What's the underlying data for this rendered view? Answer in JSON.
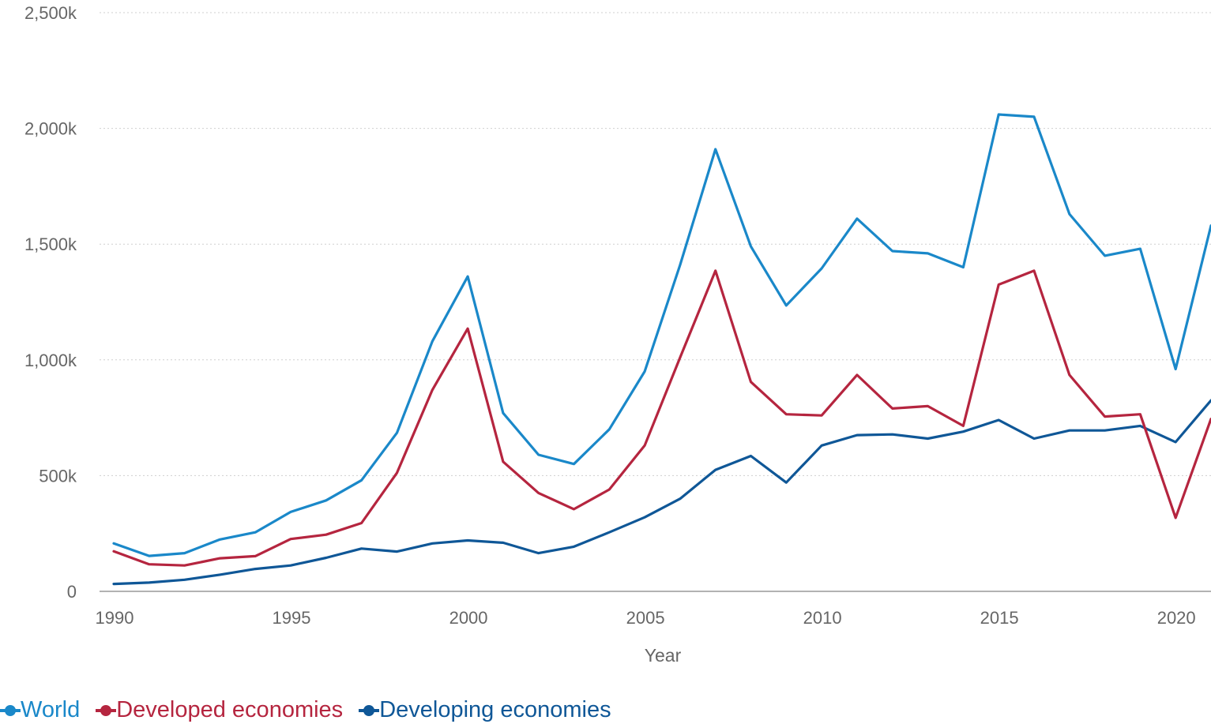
{
  "chart_data": {
    "type": "line",
    "xlabel": "Year",
    "ylabel": "",
    "x": [
      1990,
      1991,
      1992,
      1993,
      1994,
      1995,
      1996,
      1997,
      1998,
      1999,
      2000,
      2001,
      2002,
      2003,
      2004,
      2005,
      2006,
      2007,
      2008,
      2009,
      2010,
      2011,
      2012,
      2013,
      2014,
      2015,
      2016,
      2017,
      2018,
      2019,
      2020,
      2021
    ],
    "xlim": [
      1990,
      2021
    ],
    "x_ticks": [
      1990,
      1995,
      2000,
      2005,
      2010,
      2015,
      2020
    ],
    "x_tick_labels": [
      "1990",
      "1995",
      "2000",
      "2005",
      "2010",
      "2015",
      "2020"
    ],
    "ylim": [
      0,
      2500
    ],
    "y_ticks": [
      0,
      500,
      1000,
      1500,
      2000,
      2500
    ],
    "y_tick_labels": [
      "0",
      "500k",
      "1,000k",
      "1,500k",
      "2,000k",
      "2,500k"
    ],
    "grid": "horizontal dotted",
    "legend_position": "bottom-left",
    "series": [
      {
        "name": "World",
        "color": "#1a88c9",
        "values": [
          207,
          153,
          165,
          224,
          255,
          343,
          393,
          480,
          685,
          1080,
          1360,
          770,
          590,
          550,
          700,
          950,
          1410,
          1910,
          1490,
          1235,
          1395,
          1610,
          1470,
          1460,
          1400,
          2060,
          2050,
          1630,
          1450,
          1480,
          960,
          1580
        ]
      },
      {
        "name": "Developed economies",
        "color": "#b5253f",
        "values": [
          173,
          117,
          112,
          143,
          152,
          226,
          245,
          295,
          512,
          870,
          1135,
          560,
          425,
          355,
          440,
          630,
          1010,
          1385,
          905,
          765,
          760,
          935,
          790,
          800,
          715,
          1325,
          1385,
          935,
          755,
          765,
          318,
          745
        ]
      },
      {
        "name": "Developing economies",
        "color": "#0f5797",
        "values": [
          32,
          38,
          50,
          72,
          97,
          112,
          145,
          185,
          172,
          207,
          220,
          210,
          165,
          193,
          255,
          320,
          400,
          525,
          585,
          470,
          630,
          675,
          678,
          660,
          690,
          740,
          660,
          695,
          695,
          715,
          645,
          825
        ]
      }
    ]
  }
}
